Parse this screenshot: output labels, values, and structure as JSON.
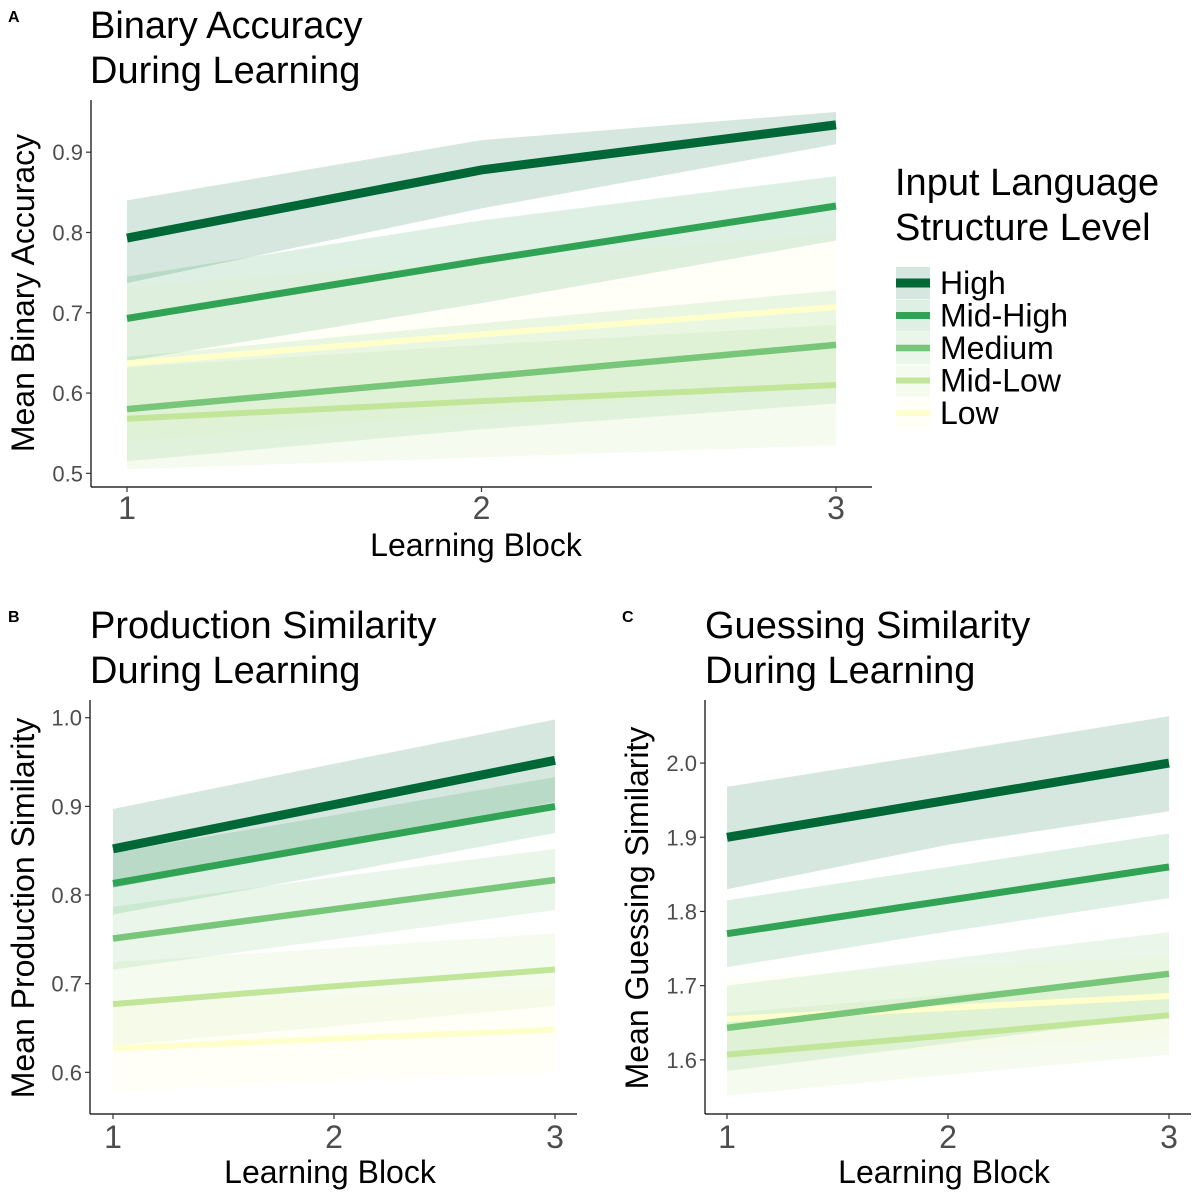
{
  "legend": {
    "title_line1": "Input Language",
    "title_line2": "Structure Level",
    "entries": [
      {
        "name": "High",
        "color": "#006837"
      },
      {
        "name": "Mid-High",
        "color": "#31a354"
      },
      {
        "name": "Medium",
        "color": "#78c679"
      },
      {
        "name": "Mid-Low",
        "color": "#c2e699"
      },
      {
        "name": "Low",
        "color": "#ffffcc"
      }
    ]
  },
  "chart_data": [
    {
      "type": "line",
      "panel_label": "A",
      "title_line1": "Binary Accuracy",
      "title_line2": "During Learning",
      "xlabel": "Learning Block",
      "ylabel": "Mean Binary Accuracy",
      "x": [
        1,
        2,
        3
      ],
      "xticks": [
        "1",
        "2",
        "3"
      ],
      "yticks": [
        "0.5",
        "0.6",
        "0.7",
        "0.8",
        "0.9"
      ],
      "yticks_values": [
        0.5,
        0.6,
        0.7,
        0.8,
        0.9
      ],
      "ylim": [
        0.483,
        0.965
      ],
      "series": [
        {
          "name": "Low",
          "values": [
            0.637,
            0.673,
            0.707
          ],
          "lower": [
            0.54,
            0.575,
            0.612
          ],
          "upper": [
            0.733,
            0.765,
            0.798
          ]
        },
        {
          "name": "Mid-Low",
          "values": [
            0.568,
            0.59,
            0.61
          ],
          "lower": [
            0.505,
            0.52,
            0.535
          ],
          "upper": [
            0.632,
            0.66,
            0.685
          ]
        },
        {
          "name": "Medium",
          "values": [
            0.58,
            0.62,
            0.66
          ],
          "lower": [
            0.515,
            0.555,
            0.587
          ],
          "upper": [
            0.645,
            0.687,
            0.728
          ]
        },
        {
          "name": "Mid-High",
          "values": [
            0.693,
            0.765,
            0.833
          ],
          "lower": [
            0.64,
            0.712,
            0.79
          ],
          "upper": [
            0.745,
            0.815,
            0.87
          ]
        },
        {
          "name": "High",
          "values": [
            0.793,
            0.878,
            0.934
          ],
          "lower": [
            0.737,
            0.83,
            0.91
          ],
          "upper": [
            0.84,
            0.915,
            0.95
          ]
        }
      ]
    },
    {
      "type": "line",
      "panel_label": "B",
      "title_line1": "Production Similarity",
      "title_line2": "During Learning",
      "xlabel": "Learning Block",
      "ylabel": "Mean Production Similarity",
      "x": [
        1,
        2,
        3
      ],
      "xticks": [
        "1",
        "2",
        "3"
      ],
      "yticks": [
        "0.6",
        "0.7",
        "0.8",
        "0.9",
        "1.0"
      ],
      "yticks_values": [
        0.6,
        0.7,
        0.8,
        0.9,
        1.0
      ],
      "ylim": [
        0.553,
        1.02
      ],
      "series": [
        {
          "name": "Low",
          "values": [
            0.627,
            0.638,
            0.648
          ],
          "lower": [
            0.578,
            0.59,
            0.6
          ],
          "upper": [
            0.676,
            0.686,
            0.696
          ]
        },
        {
          "name": "Mid-Low",
          "values": [
            0.677,
            0.697,
            0.716
          ],
          "lower": [
            0.63,
            0.652,
            0.675
          ],
          "upper": [
            0.724,
            0.74,
            0.757
          ]
        },
        {
          "name": "Medium",
          "values": [
            0.751,
            0.784,
            0.817
          ],
          "lower": [
            0.716,
            0.75,
            0.783
          ],
          "upper": [
            0.787,
            0.82,
            0.852
          ]
        },
        {
          "name": "Mid-High",
          "values": [
            0.813,
            0.857,
            0.9
          ],
          "lower": [
            0.778,
            0.824,
            0.87
          ],
          "upper": [
            0.848,
            0.89,
            0.933
          ]
        },
        {
          "name": "High",
          "values": [
            0.852,
            0.902,
            0.952
          ],
          "lower": [
            0.808,
            0.855,
            0.905
          ],
          "upper": [
            0.897,
            0.948,
            0.998
          ]
        }
      ]
    },
    {
      "type": "line",
      "panel_label": "C",
      "title_line1": "Guessing Similarity",
      "title_line2": "During Learning",
      "xlabel": "Learning Block",
      "ylabel": "Mean Guessing Similarity",
      "x": [
        1,
        2,
        3
      ],
      "xticks": [
        "1",
        "2",
        "3"
      ],
      "yticks": [
        "1.6",
        "1.7",
        "1.8",
        "1.9",
        "2.0"
      ],
      "yticks_values": [
        1.6,
        1.7,
        1.8,
        1.9,
        2.0
      ],
      "ylim": [
        1.527,
        2.085
      ],
      "series": [
        {
          "name": "Low",
          "values": [
            1.655,
            1.67,
            1.686
          ],
          "lower": [
            1.6,
            1.615,
            1.63
          ],
          "upper": [
            1.71,
            1.725,
            1.74
          ]
        },
        {
          "name": "Mid-Low",
          "values": [
            1.607,
            1.633,
            1.66
          ],
          "lower": [
            1.552,
            1.58,
            1.607
          ],
          "upper": [
            1.663,
            1.688,
            1.713
          ]
        },
        {
          "name": "Medium",
          "values": [
            1.643,
            1.68,
            1.716
          ],
          "lower": [
            1.585,
            1.622,
            1.66
          ],
          "upper": [
            1.7,
            1.736,
            1.772
          ]
        },
        {
          "name": "Mid-High",
          "values": [
            1.77,
            1.815,
            1.86
          ],
          "lower": [
            1.725,
            1.773,
            1.818
          ],
          "upper": [
            1.815,
            1.86,
            1.905
          ]
        },
        {
          "name": "High",
          "values": [
            1.9,
            1.95,
            2.0
          ],
          "lower": [
            1.83,
            1.89,
            1.935
          ],
          "upper": [
            1.968,
            2.015,
            2.063
          ]
        }
      ]
    }
  ]
}
